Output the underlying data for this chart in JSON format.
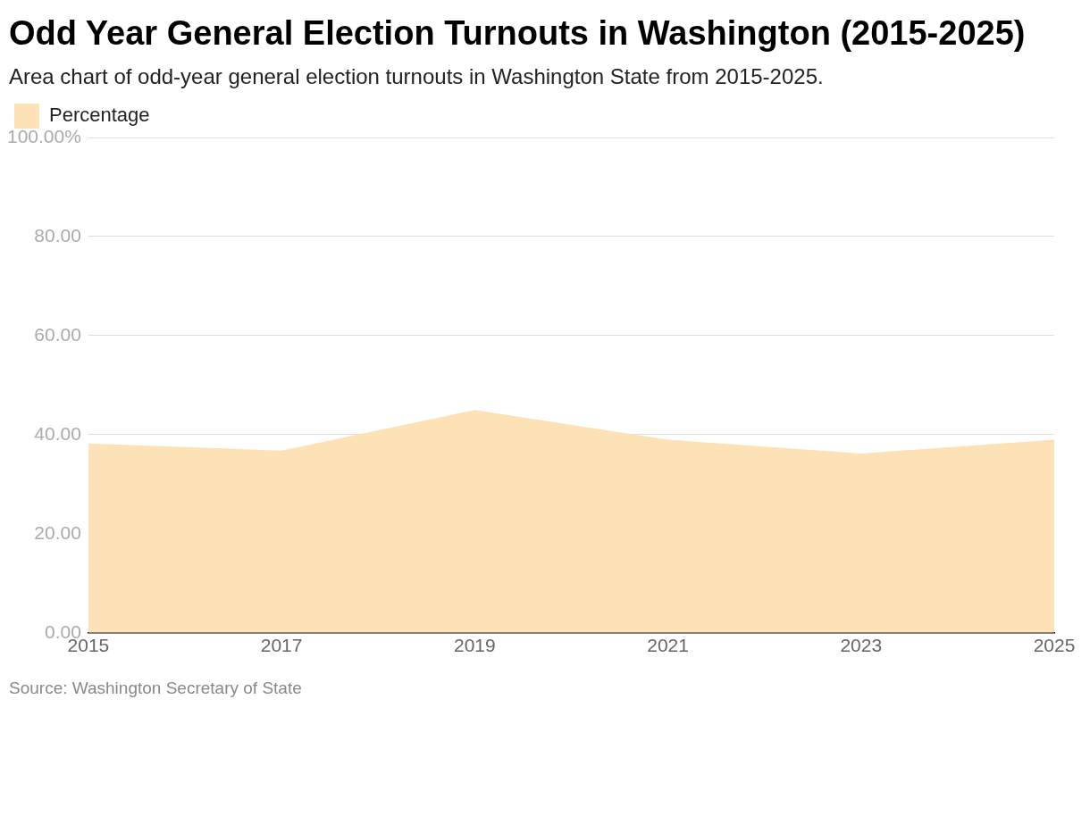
{
  "chart_data": {
    "type": "area",
    "title": "Odd Year General Election Turnouts in Washington (2015-2025)",
    "subtitle": "Area chart of odd-year general election turnouts in Washington State from 2015-2025.",
    "x": [
      2015,
      2017,
      2019,
      2021,
      2023,
      2025
    ],
    "series": [
      {
        "name": "Percentage",
        "color": "#fde2b8",
        "values": [
          38.2,
          36.8,
          45.0,
          39.0,
          36.2,
          39.0
        ]
      }
    ],
    "xlim": [
      2015,
      2025
    ],
    "xticks": [
      2015,
      2017,
      2019,
      2021,
      2023,
      2025
    ],
    "ylim": [
      0,
      100
    ],
    "yticks": [
      {
        "value": 0,
        "label": "0.00"
      },
      {
        "value": 20,
        "label": "20.00"
      },
      {
        "value": 40,
        "label": "40.00"
      },
      {
        "value": 60,
        "label": "60.00"
      },
      {
        "value": 80,
        "label": "80.00"
      },
      {
        "value": 100,
        "label": "100.00%"
      }
    ],
    "grid": "y",
    "legend": "top left",
    "marker": "none",
    "annotations": [
      "Source: Washington Secretary of State"
    ]
  }
}
